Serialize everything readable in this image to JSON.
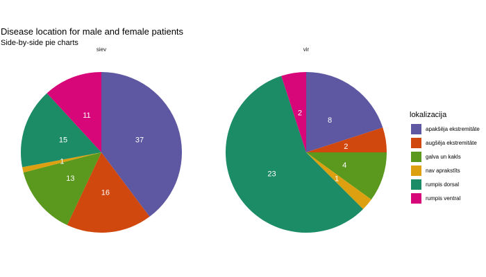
{
  "chart_data": {
    "type": "pie",
    "title": "Disease location for male and female patients",
    "subtitle": "Side-by-side pie charts",
    "legend_title": "lokalizacija",
    "legend_position": "right",
    "categories": [
      {
        "name": "apakšēja ekstremitāte",
        "color": "#5E57A1"
      },
      {
        "name": "augšēja ekstremitāte",
        "color": "#D1480E"
      },
      {
        "name": "galva un kakls",
        "color": "#5A991E"
      },
      {
        "name": "nav aprakstīts",
        "color": "#DDA010"
      },
      {
        "name": "rumpis dorsal",
        "color": "#1C8C66"
      },
      {
        "name": "rumpis ventral",
        "color": "#D7077A"
      }
    ],
    "panels": [
      {
        "label": "siev",
        "values": [
          37,
          16,
          13,
          1,
          15,
          11
        ]
      },
      {
        "label": "vir",
        "values": [
          8,
          2,
          4,
          1,
          23,
          2
        ]
      }
    ]
  }
}
